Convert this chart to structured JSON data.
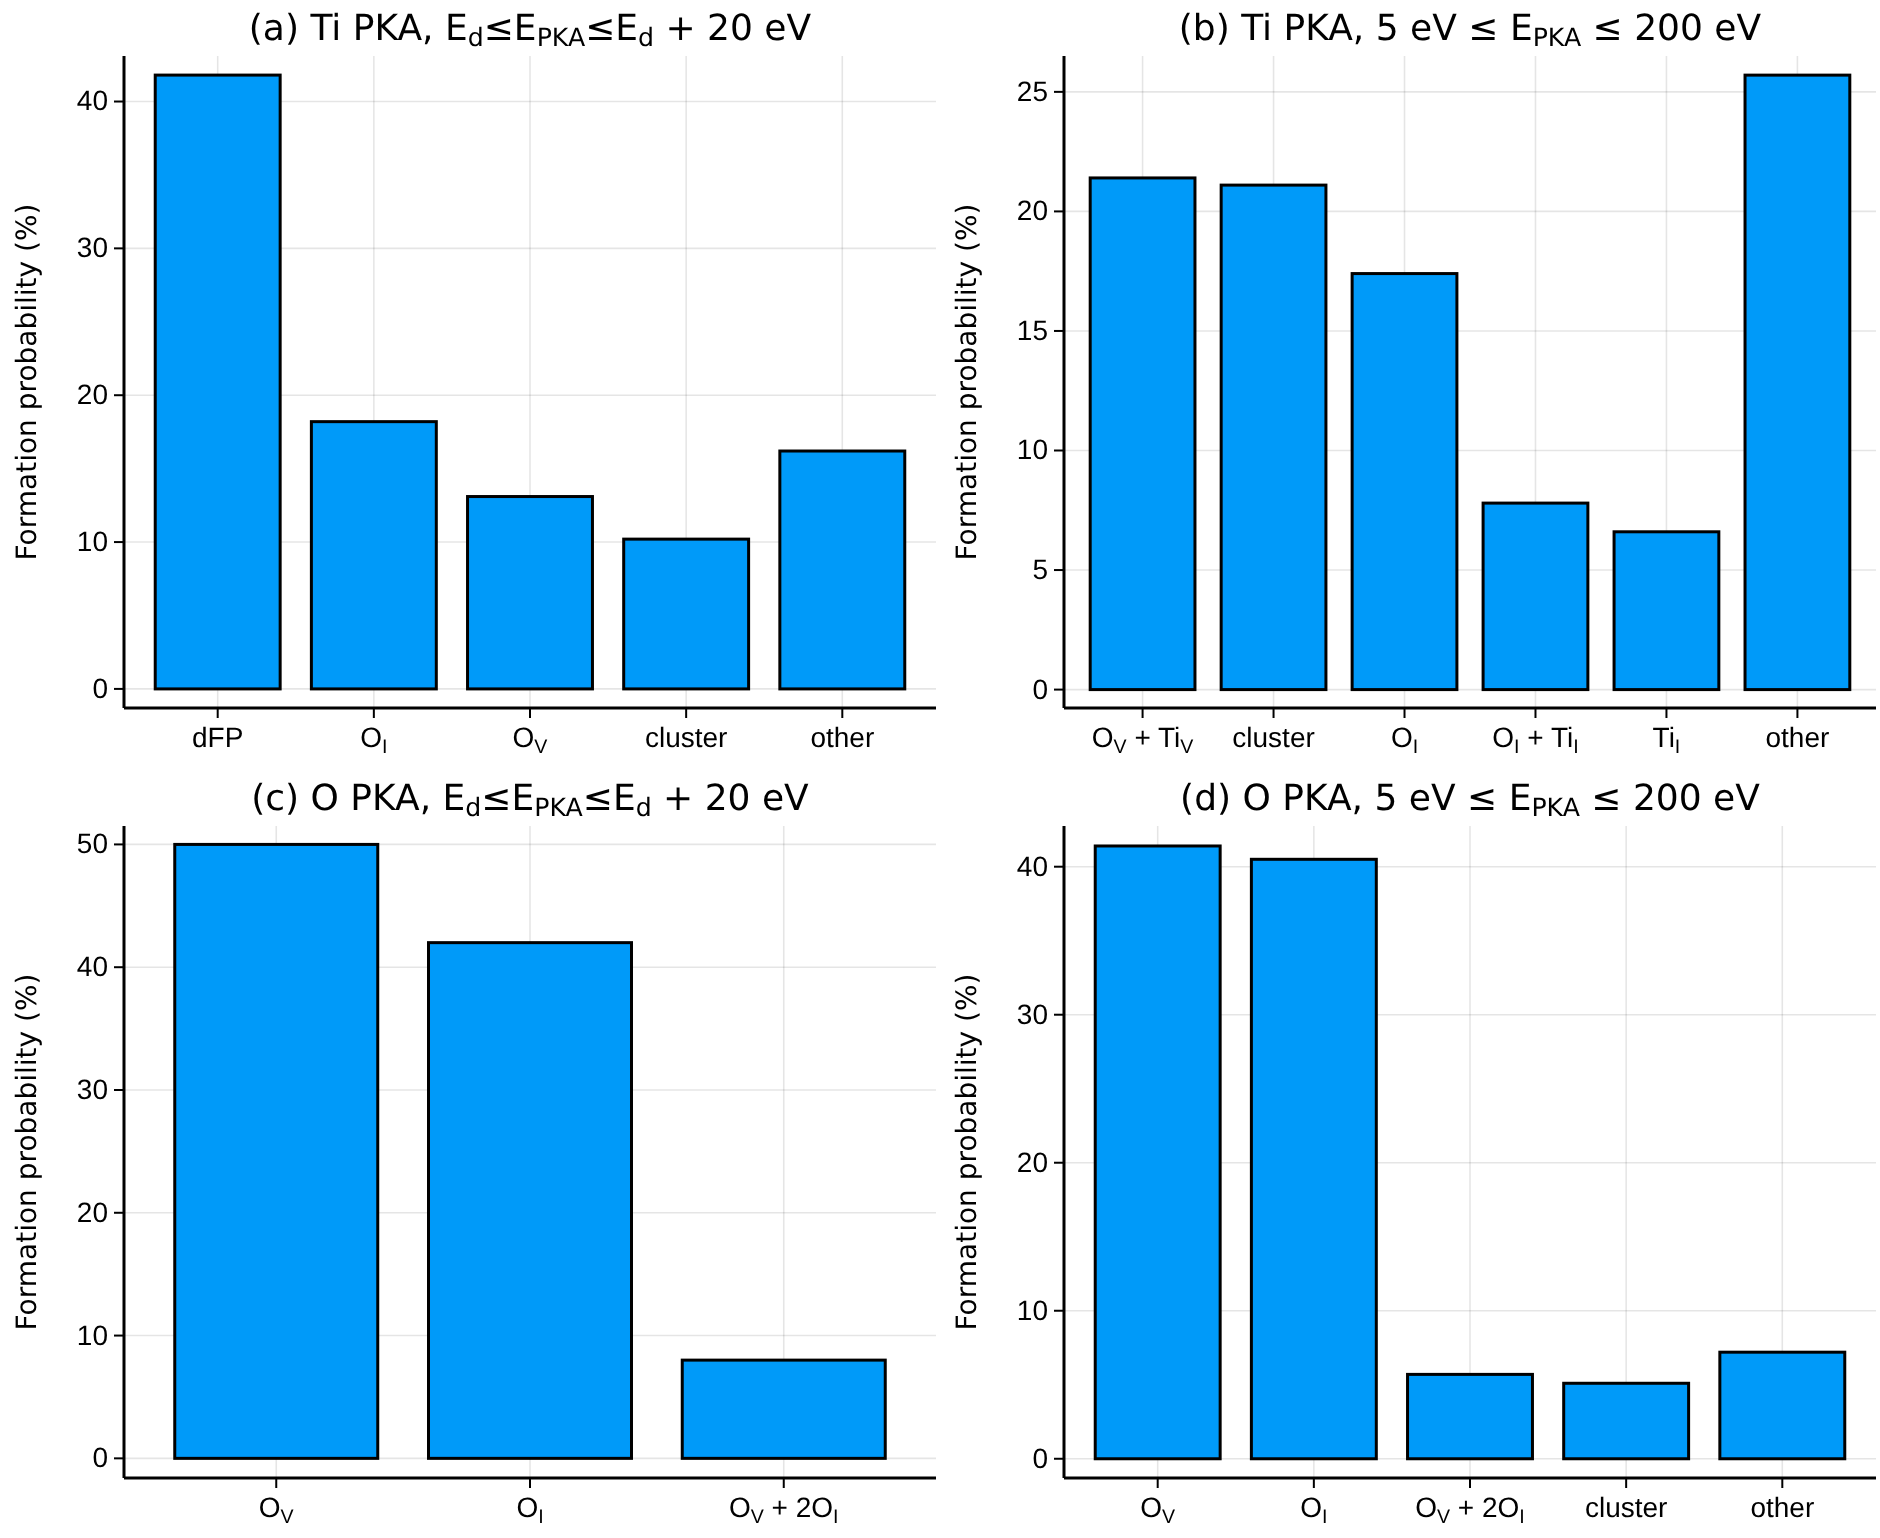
{
  "chart_data": [
    {
      "type": "bar",
      "title": "(a) Ti PKA, E$_{d}$≤E$_{PKA}$≤E$_{d}$ + 20 eV",
      "ylabel": "Formation probability (%)",
      "categories": [
        "dFP",
        "O$_{I}$",
        "O$_{V}$",
        "cluster",
        "other"
      ],
      "values": [
        41.8,
        18.2,
        13.1,
        10.2,
        16.2
      ],
      "color": "#009af9",
      "ylim": [
        -1.3,
        43.1
      ],
      "yticks": [
        0,
        10,
        20,
        30,
        40
      ],
      "grid": true
    },
    {
      "type": "bar",
      "title": "(b) Ti PKA, 5 eV ≤ E$_{PKA}$ ≤ 200 eV",
      "ylabel": "Formation probability (%)",
      "categories": [
        "O$_{V}$ + Ti$_{V}$",
        "cluster",
        "O$_{I}$",
        "O$_{I}$ + Ti$_{I}$",
        "Ti$_{I}$",
        "other"
      ],
      "values": [
        21.4,
        21.1,
        17.4,
        7.8,
        6.6,
        25.7
      ],
      "color": "#009af9",
      "ylim": [
        -0.77,
        26.5
      ],
      "yticks": [
        0,
        5,
        10,
        15,
        20,
        25
      ],
      "grid": true
    },
    {
      "type": "bar",
      "title": "(c) O PKA, E$_{d}$≤E$_{PKA}$≤E$_{d}$ + 20 eV",
      "ylabel": "Formation probability (%)",
      "categories": [
        "O$_{V}$",
        "O$_{I}$",
        "O$_{V}$ + 2O$_{I}$"
      ],
      "values": [
        50.0,
        42.0,
        8.0
      ],
      "color": "#009af9",
      "ylim": [
        -1.6,
        51.5
      ],
      "yticks": [
        0,
        10,
        20,
        30,
        40,
        50
      ],
      "grid": true
    },
    {
      "type": "bar",
      "title": "(d) O PKA, 5 eV ≤ E$_{PKA}$ ≤ 200 eV",
      "ylabel": "Formation probability (%)",
      "categories": [
        "O$_{V}$",
        "O$_{I}$",
        "O$_{V}$ + 2O$_{I}$",
        "cluster",
        "other"
      ],
      "values": [
        41.4,
        40.5,
        5.7,
        5.1,
        7.2
      ],
      "color": "#009af9",
      "ylim": [
        -1.3,
        42.75
      ],
      "yticks": [
        0,
        10,
        20,
        30,
        40
      ],
      "grid": true
    }
  ]
}
